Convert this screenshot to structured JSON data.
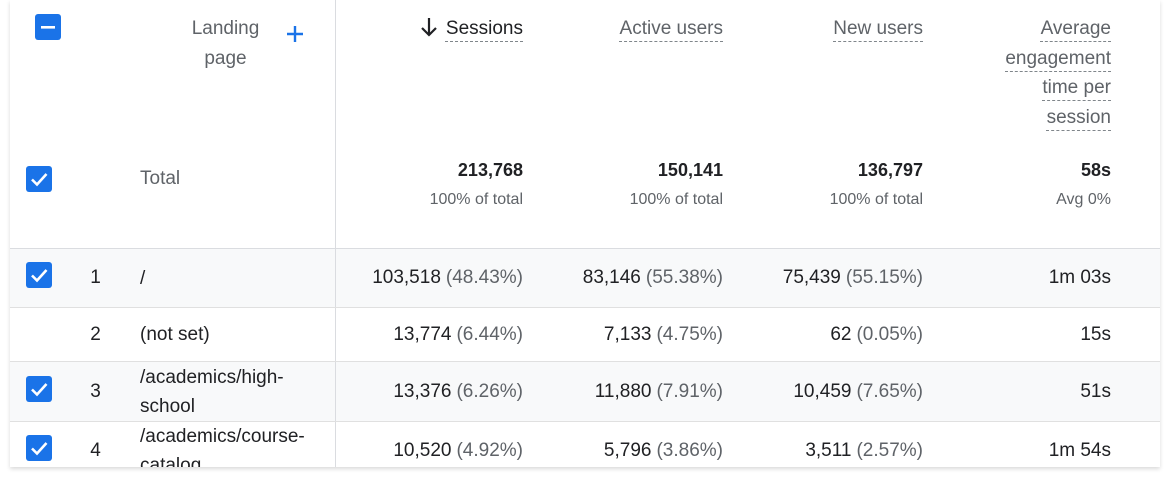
{
  "table": {
    "headers": [
      "Landing page",
      "Sessions",
      "Active users",
      "New users",
      "Average engagement time per session"
    ],
    "total": {
      "label": "Total",
      "checked": true,
      "values": [
        "213,768",
        "150,141",
        "136,797",
        "58s"
      ],
      "notes": [
        "100% of total",
        "100% of total",
        "100% of total",
        "Avg 0%"
      ]
    },
    "rows": [
      {
        "index": 1,
        "page": "/",
        "checked": true,
        "cells": [
          {
            "value": "103,518",
            "pct": "(48.43%)"
          },
          {
            "value": "83,146",
            "pct": "(55.38%)"
          },
          {
            "value": "75,439",
            "pct": "(55.15%)"
          }
        ],
        "time": "1m 03s"
      },
      {
        "index": 2,
        "page": "(not set)",
        "checked": false,
        "cells": [
          {
            "value": "13,774",
            "pct": "(6.44%)"
          },
          {
            "value": "7,133",
            "pct": "(4.75%)"
          },
          {
            "value": "62",
            "pct": "(0.05%)"
          }
        ],
        "time": "15s"
      },
      {
        "index": 3,
        "page": "/academics/high-school",
        "checked": true,
        "cells": [
          {
            "value": "13,376",
            "pct": "(6.26%)"
          },
          {
            "value": "11,880",
            "pct": "(7.91%)"
          },
          {
            "value": "10,459",
            "pct": "(7.65%)"
          }
        ],
        "time": "51s"
      },
      {
        "index": 4,
        "page": "/academics/course-catalog",
        "checked": true,
        "cells": [
          {
            "value": "10,520",
            "pct": "(4.92%)"
          },
          {
            "value": "5,796",
            "pct": "(3.86%)"
          },
          {
            "value": "3,511",
            "pct": "(2.57%)"
          }
        ],
        "time": "1m 54s"
      }
    ]
  }
}
